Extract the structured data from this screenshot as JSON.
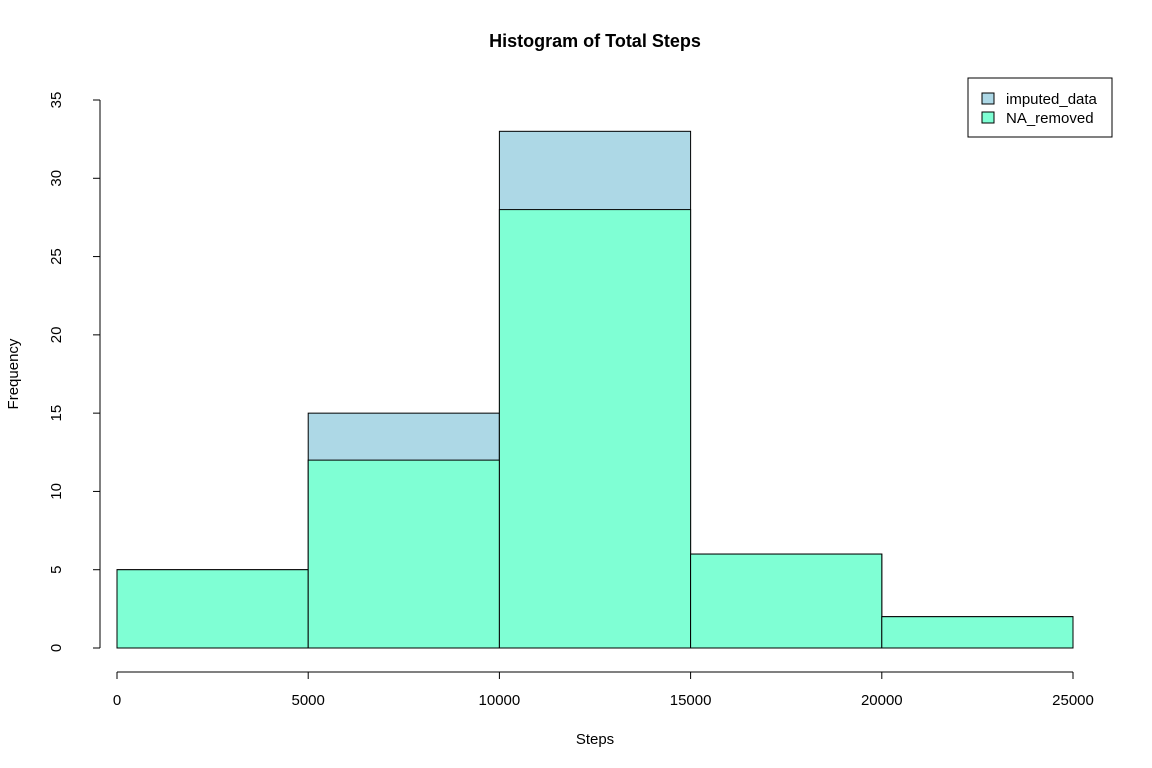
{
  "chart_data": {
    "type": "bar",
    "title": "Histogram of Total Steps",
    "xlabel": "Steps",
    "ylabel": "Frequency",
    "bins": [
      [
        0,
        5000
      ],
      [
        5000,
        10000
      ],
      [
        10000,
        15000
      ],
      [
        15000,
        20000
      ],
      [
        20000,
        25000
      ]
    ],
    "series": [
      {
        "name": "imputed_data",
        "values": [
          5,
          15,
          33,
          6,
          2
        ],
        "color": "#ADD8E6"
      },
      {
        "name": "NA_removed",
        "values": [
          5,
          12,
          28,
          6,
          2
        ],
        "color": "#7FFFD4"
      }
    ],
    "xlim": [
      0,
      25000
    ],
    "ylim": [
      0,
      35
    ],
    "xticks": [
      0,
      5000,
      10000,
      15000,
      20000,
      25000
    ],
    "yticks": [
      0,
      5,
      10,
      15,
      20,
      25,
      30,
      35
    ],
    "grid": false,
    "legend_position": "top-right"
  }
}
